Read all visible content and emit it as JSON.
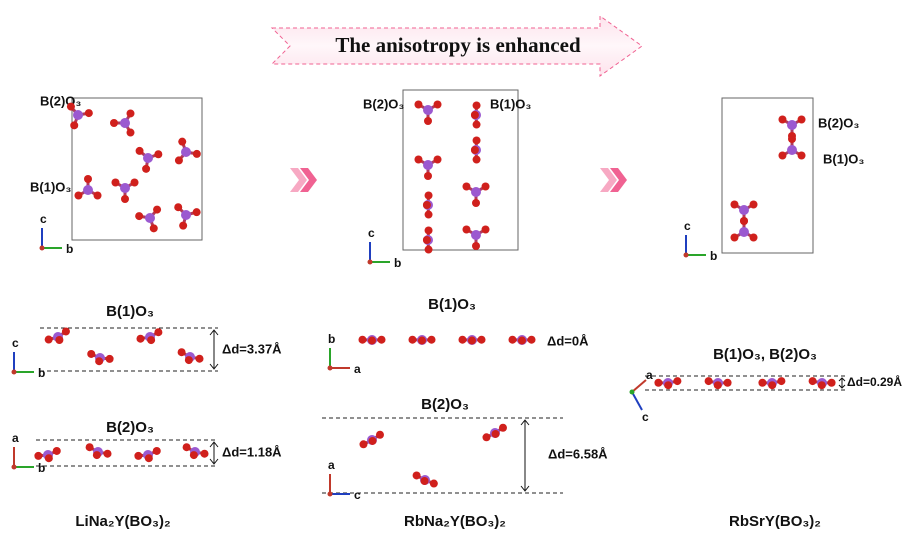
{
  "banner": "The anisotropy is enhanced",
  "panels": [
    {
      "compound": "LiNa₂Y(BO₃)₂",
      "cell": {
        "labels": [
          "B(2)O₃",
          "B(1)O₃"
        ],
        "axes": [
          "c",
          "b"
        ]
      },
      "layers": [
        {
          "title": "B(1)O₃",
          "delta": "Δd=3.37Å",
          "axes": [
            "c",
            "b"
          ]
        },
        {
          "title": "B(2)O₃",
          "delta": "Δd=1.18Å",
          "axes": [
            "a",
            "b"
          ]
        }
      ]
    },
    {
      "compound": "RbNa₂Y(BO₃)₂",
      "cell": {
        "labels": [
          "B(2)O₃",
          "B(1)O₃"
        ],
        "axes": [
          "c",
          "b"
        ]
      },
      "layers": [
        {
          "title": "B(1)O₃",
          "delta": "Δd=0Å",
          "axes": [
            "b",
            "a"
          ]
        },
        {
          "title": "B(2)O₃",
          "delta": "Δd=6.58Å",
          "axes": [
            "a",
            "c"
          ]
        }
      ]
    },
    {
      "compound": "RbSrY(BO₃)₂",
      "cell": {
        "labels": [
          "B(2)O₃",
          "B(1)O₃"
        ],
        "axes": [
          "c",
          "b"
        ]
      },
      "layers": [
        {
          "title": "B(1)O₃, B(2)O₃",
          "delta": "Δd=0.29Å",
          "axes": [
            "a",
            "c"
          ]
        }
      ]
    }
  ]
}
